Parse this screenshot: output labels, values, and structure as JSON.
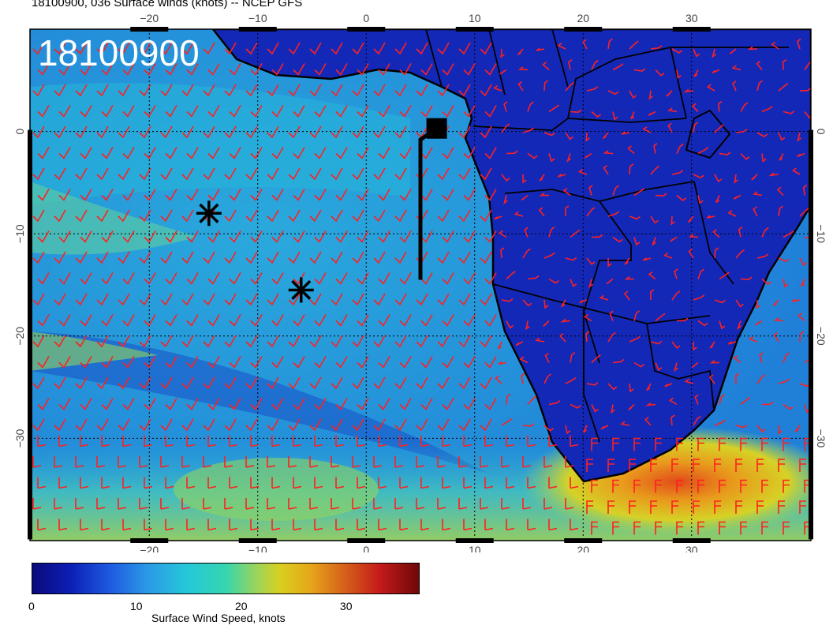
{
  "title": "18100900, 036 Surface winds (knots) -- NCEP GFS",
  "stamp": "18100900",
  "map": {
    "lon_range": [
      -31,
      41
    ],
    "lat_range": [
      -40,
      10
    ],
    "x_ticks": [
      "-20",
      "-10",
      "0",
      "10",
      "20",
      "30"
    ],
    "y_ticks": [
      "0",
      "-10",
      "-20",
      "-30"
    ],
    "grid": true,
    "barb_color": "#ff2020"
  },
  "markers": [
    {
      "name": "asterisk",
      "lon": -14.5,
      "lat": -8
    },
    {
      "name": "asterisk",
      "lon": -6,
      "lat": -15.5
    },
    {
      "name": "square",
      "lon": 6.5,
      "lat": 0.3
    }
  ],
  "track": {
    "lon": [
      5,
      5,
      6.5
    ],
    "lats": [
      -14.5,
      -0.8,
      0.3
    ]
  },
  "colorbar": {
    "ticks": [
      "0",
      "10",
      "20",
      "30"
    ],
    "label": "Surface Wind Speed, knots",
    "range": [
      0,
      37
    ]
  }
}
